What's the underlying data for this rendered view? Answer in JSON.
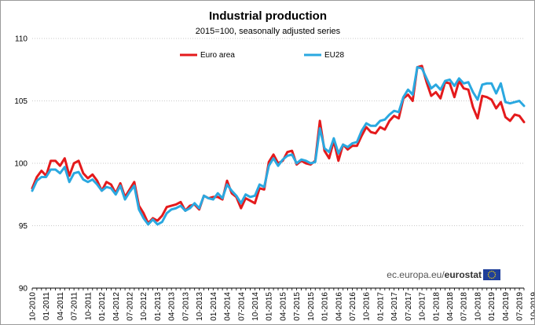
{
  "chart_data": {
    "type": "line",
    "title": "Industrial production",
    "subtitle": "2015=100, seasonally adjusted series",
    "xlabel": "",
    "ylabel": "",
    "ylim": [
      90,
      110
    ],
    "yticks": [
      90,
      95,
      100,
      105,
      110
    ],
    "grid": "horizontal",
    "legend_position": "top",
    "tick_labels": [
      "10-2010",
      "01-2011",
      "04-2011",
      "07-2011",
      "10-2011",
      "01-2012",
      "04-2012",
      "07-2012",
      "10-2012",
      "01-2013",
      "04-2013",
      "07-2013",
      "10-2013",
      "01-2014",
      "04-2014",
      "07-2014",
      "10-2014",
      "01-2015",
      "04-2015",
      "07-2015",
      "10-2015",
      "01-2016",
      "04-2016",
      "07-2016",
      "10-2016",
      "01-2017",
      "04-2017",
      "07-2017",
      "10-2017",
      "01-2018",
      "04-2018",
      "07-2018",
      "10-2018",
      "01-2019",
      "04-2019",
      "07-2019",
      "10-2019"
    ],
    "series": [
      {
        "name": "Euro area",
        "color": "#e41a1c",
        "values": [
          98.0,
          98.9,
          99.4,
          99.0,
          100.2,
          100.2,
          99.8,
          100.4,
          99.0,
          100.0,
          100.2,
          99.2,
          98.8,
          99.1,
          98.6,
          97.8,
          98.5,
          98.3,
          97.6,
          98.4,
          97.3,
          97.9,
          98.5,
          96.6,
          96.0,
          95.2,
          95.6,
          95.4,
          95.8,
          96.5,
          96.6,
          96.7,
          96.9,
          96.2,
          96.6,
          96.7,
          96.3,
          97.4,
          97.2,
          97.3,
          97.3,
          97.1,
          98.6,
          97.6,
          97.3,
          96.4,
          97.2,
          97.0,
          96.8,
          98.0,
          97.9,
          100.1,
          100.7,
          100.0,
          100.2,
          100.9,
          101.0,
          99.9,
          100.2,
          100.0,
          99.9,
          100.2,
          103.4,
          101.0,
          100.4,
          101.8,
          100.2,
          101.5,
          101.1,
          101.4,
          101.4,
          102.2,
          102.9,
          102.5,
          102.4,
          102.9,
          102.7,
          103.4,
          103.8,
          103.6,
          105.2,
          105.5,
          105.0,
          107.7,
          107.8,
          106.5,
          105.4,
          105.7,
          105.2,
          106.5,
          106.4,
          105.3,
          106.6,
          106.0,
          105.9,
          104.5,
          103.6,
          105.4,
          105.3,
          105.1,
          104.4,
          104.9,
          103.7,
          103.4,
          103.9,
          103.8,
          103.3
        ]
      },
      {
        "name": "EU28",
        "color": "#2aa8e0",
        "values": [
          97.8,
          98.6,
          98.9,
          98.9,
          99.5,
          99.5,
          99.2,
          99.7,
          98.5,
          99.2,
          99.3,
          98.7,
          98.5,
          98.7,
          98.3,
          97.8,
          98.1,
          98.0,
          97.5,
          98.2,
          97.1,
          97.7,
          98.2,
          96.3,
          95.6,
          95.1,
          95.5,
          95.1,
          95.3,
          96.0,
          96.3,
          96.4,
          96.6,
          96.2,
          96.4,
          96.8,
          96.4,
          97.4,
          97.2,
          97.1,
          97.6,
          97.2,
          98.3,
          97.8,
          97.4,
          96.8,
          97.5,
          97.3,
          97.4,
          98.3,
          98.1,
          99.8,
          100.4,
          99.8,
          100.3,
          100.6,
          100.7,
          100.0,
          100.3,
          100.2,
          100.0,
          100.1,
          102.8,
          101.2,
          100.9,
          102.0,
          100.8,
          101.5,
          101.3,
          101.6,
          101.7,
          102.6,
          103.2,
          103.0,
          103.0,
          103.4,
          103.5,
          103.9,
          104.2,
          104.1,
          105.3,
          105.9,
          105.5,
          107.7,
          107.6,
          106.8,
          106.0,
          106.3,
          105.9,
          106.6,
          106.7,
          106.2,
          106.8,
          106.4,
          106.5,
          105.7,
          105.1,
          106.3,
          106.4,
          106.4,
          105.6,
          106.4,
          104.9,
          104.8,
          104.9,
          105.0,
          104.6
        ]
      }
    ]
  },
  "branding": {
    "url": "ec.europa.eu/",
    "name": "eurostat"
  }
}
